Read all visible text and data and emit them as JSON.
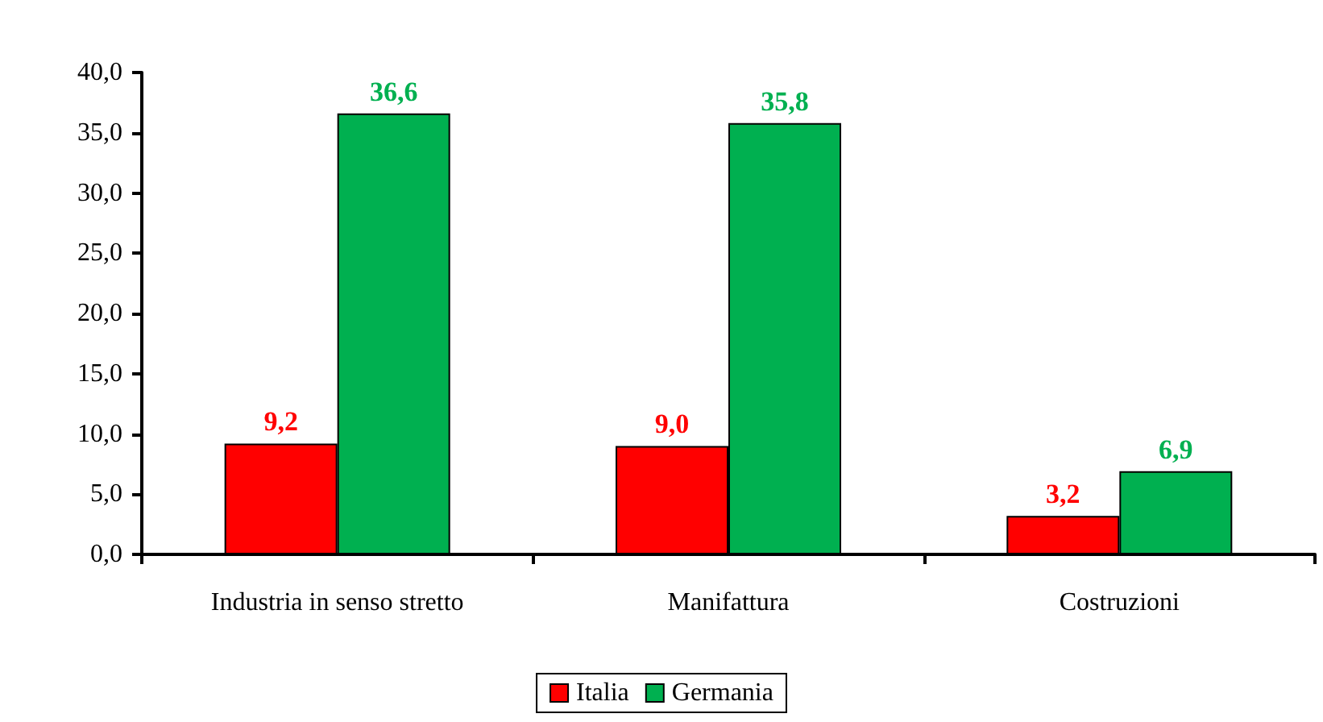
{
  "chart_data": {
    "type": "bar",
    "categories": [
      "Industria in senso stretto",
      "Manifattura",
      "Costruzioni"
    ],
    "series": [
      {
        "name": "Italia",
        "color": "#ff0000",
        "values": [
          9.2,
          9.0,
          3.2
        ],
        "value_labels": [
          "9,2",
          "9,0",
          "3,2"
        ]
      },
      {
        "name": "Germania",
        "color": "#00b050",
        "values": [
          36.6,
          35.8,
          6.9
        ],
        "value_labels": [
          "36,6",
          "35,8",
          "6,9"
        ]
      }
    ],
    "ylim": [
      0,
      40
    ],
    "yticks": [
      {
        "value": 0,
        "label": "0,0"
      },
      {
        "value": 5,
        "label": "5,0"
      },
      {
        "value": 10,
        "label": "10,0"
      },
      {
        "value": 15,
        "label": "15,0"
      },
      {
        "value": 20,
        "label": "20,0"
      },
      {
        "value": 25,
        "label": "25,0"
      },
      {
        "value": 30,
        "label": "30,0"
      },
      {
        "value": 35,
        "label": "35,0"
      },
      {
        "value": 40,
        "label": "40,0"
      }
    ],
    "grid": false,
    "legend": "bottom"
  }
}
